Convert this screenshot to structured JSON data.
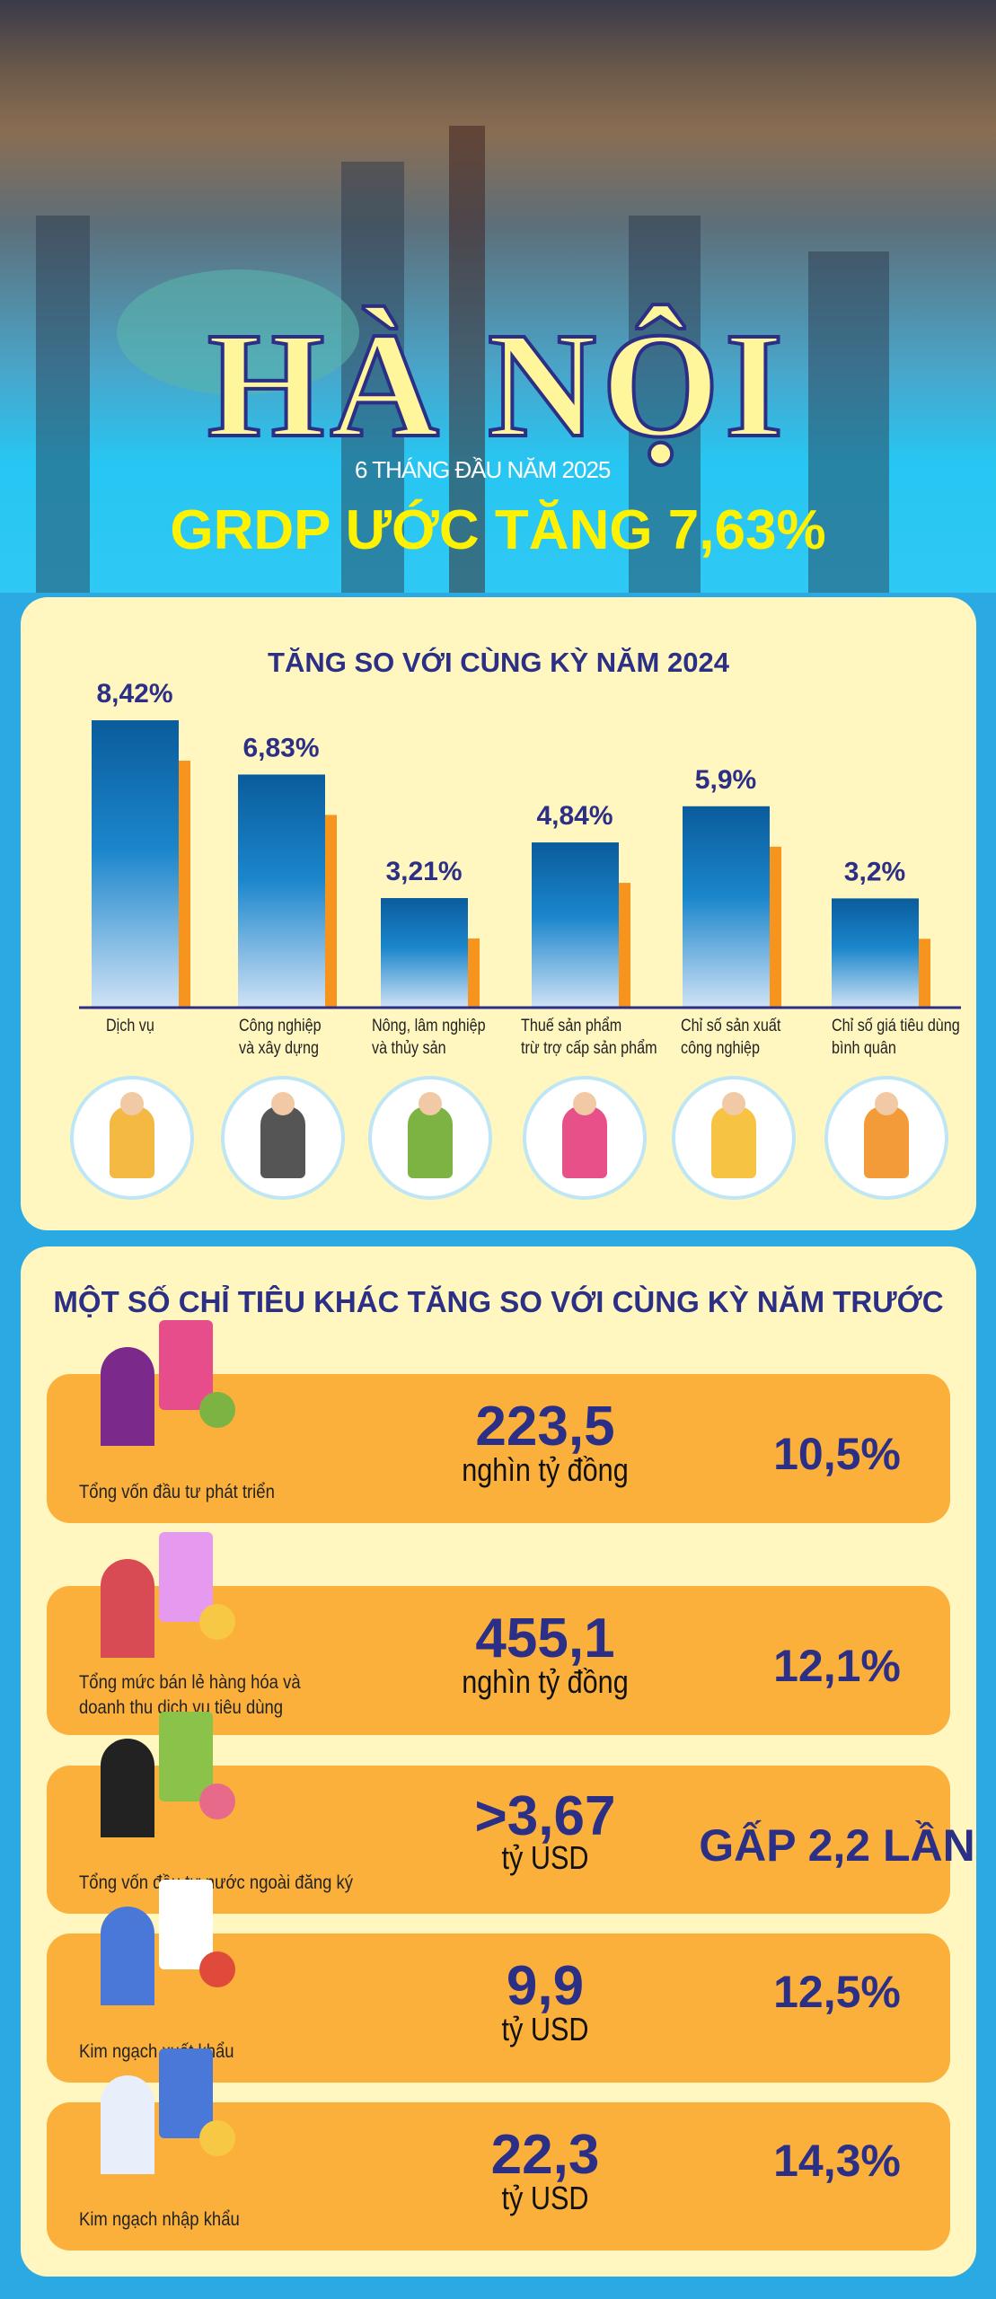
{
  "header": {
    "title": "HÀ NỘI",
    "subtitle": "6 THÁNG ĐẦU NĂM 2025",
    "headline": "GRDP ƯỚC TĂNG 7,63%"
  },
  "colors": {
    "navy": "#2b2f86",
    "yellow": "#fff200",
    "cream": "#fff7bf",
    "orange": "#fbb03b",
    "blue": "#2aa9e2"
  },
  "chart_data": {
    "type": "bar",
    "title": "TĂNG SO VỚI CÙNG KỲ NĂM 2024",
    "categories": [
      "Dịch vụ",
      "Công nghiệp và xây dựng",
      "Nông, lâm nghiệp và thủy sản",
      "Thuế sản phẩm trừ trợ cấp sản phẩm",
      "Chỉ số sản xuất công nghiệp",
      "Chỉ số giá tiêu dùng bình quân"
    ],
    "category_lines": [
      [
        "Dịch vụ"
      ],
      [
        "Công nghiệp",
        "và xây dựng"
      ],
      [
        "Nông, lâm nghiệp",
        "và thủy sản"
      ],
      [
        "Thuế sản phẩm",
        "trừ trợ cấp sản phẩm"
      ],
      [
        "Chỉ số sản xuất",
        "công nghiệp"
      ],
      [
        "Chỉ số giá tiêu dùng",
        "bình quân"
      ]
    ],
    "values": [
      8.42,
      6.83,
      3.21,
      4.84,
      5.9,
      3.2
    ],
    "labels": [
      "8,42%",
      "6,83%",
      "3,21%",
      "4,84%",
      "5,9%",
      "3,2%"
    ],
    "unit": "%",
    "grid": false,
    "icons": [
      "business-people-icon",
      "factory-workers-icon",
      "vegetable-basket-icon",
      "pie-chart-person-icon",
      "coin-growth-icon",
      "presenter-chart-icon"
    ]
  },
  "indicators": {
    "title": "MỘT SỐ CHỈ TIÊU KHÁC TĂNG SO VỚI CÙNG KỲ NĂM TRƯỚC",
    "items": [
      {
        "label": "Tổng vốn đầu tư phát triển",
        "value": "223,5",
        "unit": "nghìn tỷ đồng",
        "change": "10,5%",
        "icon": "investment-blocks-icon"
      },
      {
        "label": "Tổng mức bán lẻ hàng hóa và doanh thu dịch vụ tiêu dùng",
        "label_lines": [
          "Tổng mức bán lẻ hàng hóa và",
          "doanh thu dịch vụ tiêu dùng"
        ],
        "value": "455,1",
        "unit": "nghìn tỷ đồng",
        "change": "12,1%",
        "icon": "magnifier-pie-icon"
      },
      {
        "label": "Tổng vốn đầu tư nước ngoài đăng ký",
        "value": ">3,67",
        "unit": "tỷ USD",
        "change": "GẤP 2,2 LẦN",
        "icon": "stock-chart-icon"
      },
      {
        "label": "Kim ngạch xuất khẩu",
        "value": "9,9",
        "unit": "tỷ USD",
        "change": "12,5%",
        "icon": "laptop-target-icon"
      },
      {
        "label": "Kim ngạch nhập khẩu",
        "value": "22,3",
        "unit": "tỷ USD",
        "change": "14,3%",
        "icon": "report-board-icon"
      }
    ]
  }
}
